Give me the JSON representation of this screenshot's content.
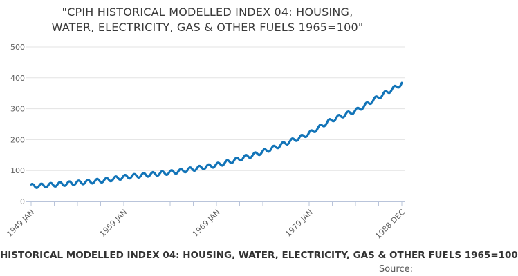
{
  "header": {
    "title_line1": "\"CPIH HISTORICAL MODELLED INDEX 04: HOUSING,",
    "title_line2": "WATER, ELECTRICITY, GAS & OTHER FUELS 1965=100\""
  },
  "footer": {
    "title": "HISTORICAL MODELLED INDEX 04: HOUSING, WATER, ELECTRICITY, GAS & OTHER FUELS 1965=100",
    "source_label": "Source:"
  },
  "chart_data": {
    "type": "line",
    "title": "\"CPIH HISTORICAL MODELLED INDEX 04: HOUSING, WATER, ELECTRICITY, GAS & OTHER FUELS 1965=100\"",
    "x_range_years": [
      1949.0,
      1988.917
    ],
    "ylim": [
      0,
      500
    ],
    "yticks": [
      0,
      100,
      200,
      300,
      400,
      500
    ],
    "xticks": [
      {
        "pos": 1949.0,
        "label": "1949 JAN"
      },
      {
        "pos": 1959.0,
        "label": "1959 JAN"
      },
      {
        "pos": 1969.0,
        "label": "1969 JAN"
      },
      {
        "pos": 1979.0,
        "label": "1979 JAN"
      },
      {
        "pos": 1988.917,
        "label": "1988 DEC"
      }
    ],
    "minor_xtick_step_years": 2.5,
    "grid": "horizontal",
    "legend": "none",
    "line_color": "#1274b8",
    "series": [
      {
        "name": "CPIH historical modelled index 04 (1965=100)",
        "start_year": 1949,
        "january_values": [
          50,
          51,
          53,
          56,
          58,
          61,
          63,
          66,
          69,
          74,
          79,
          82,
          85,
          88,
          91,
          94,
          98,
          103,
          108,
          113,
          118,
          126,
          134,
          143,
          151,
          161,
          172,
          184,
          196,
          207,
          221,
          239,
          258,
          272,
          283,
          294,
          311,
          331,
          348,
          365
        ],
        "end_point": {
          "label": "1988 DEC",
          "value": 381
        }
      }
    ],
    "seasonal_ripple_index_points": 3
  }
}
